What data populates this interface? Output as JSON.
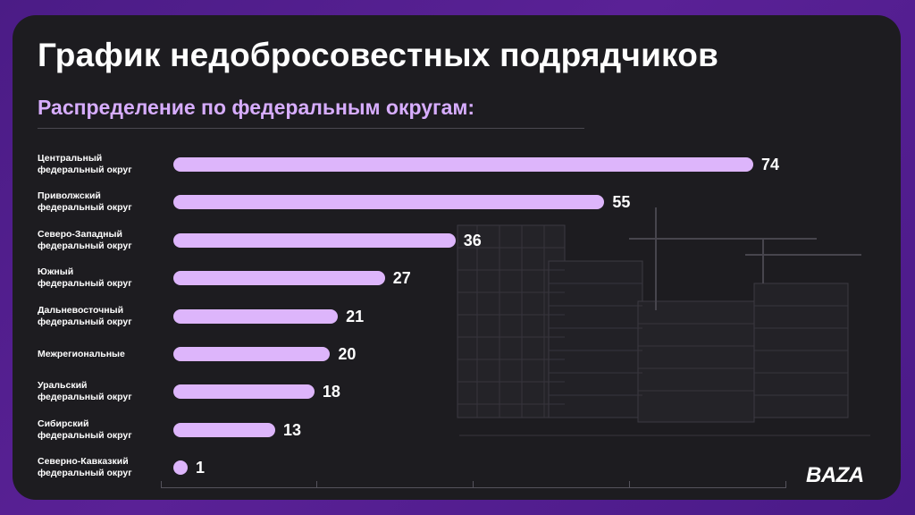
{
  "title": "График недобросовестных подрядчиков",
  "subtitle": "Распределение по федеральным округам:",
  "brand": "BAZA",
  "colors": {
    "background": "#4f1c8c",
    "card": "#1d1c20",
    "bar": "#ddb5fb",
    "subtitle": "#d7adff",
    "text": "#ffffff"
  },
  "chart_data": {
    "type": "bar",
    "orientation": "horizontal",
    "title": "График недобросовестных подрядчиков",
    "subtitle": "Распределение по федеральным округам:",
    "categories": [
      "Центральный\nфедеральный округ",
      "Приволжский\nфедеральный округ",
      "Северо-Западный\nфедеральный округ",
      "Южный\nфедеральный округ",
      "Дальневосточный\nфедеральный округ",
      "Межрегиональные",
      "Уральский\nфедеральный округ",
      "Сибирский\nфедеральный округ",
      "Северно-Кавказкий\nфедеральный округ"
    ],
    "values": [
      74,
      55,
      36,
      27,
      21,
      20,
      18,
      13,
      1
    ],
    "data_labels": [
      "74",
      "55",
      "36",
      "27",
      "21",
      "20",
      "18",
      "13",
      "1"
    ],
    "xlim": [
      0,
      80
    ],
    "grid": false,
    "legend": "none"
  }
}
